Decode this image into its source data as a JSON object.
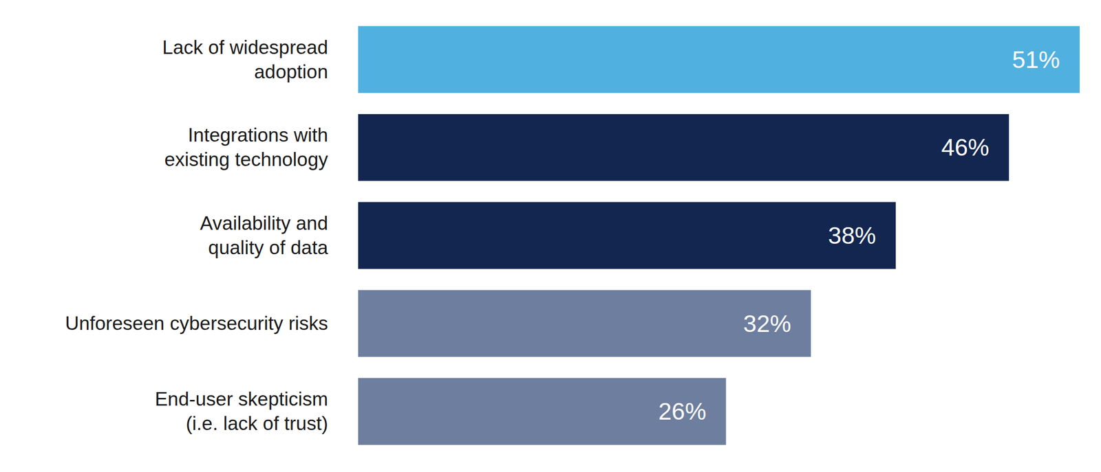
{
  "chart_data": {
    "type": "bar",
    "orientation": "horizontal",
    "categories": [
      "Lack of widespread\nadoption",
      "Integrations with\nexisting technology",
      "Availability and\nquality of data",
      "Unforeseen cybersecurity risks",
      "End-user skepticism\n(i.e. lack of trust)"
    ],
    "values": [
      51,
      46,
      38,
      32,
      26
    ],
    "value_labels": [
      "51%",
      "46%",
      "38%",
      "32%",
      "26%"
    ],
    "colors": [
      "#50b0e0",
      "#12264f",
      "#12264f",
      "#6e7e9e",
      "#6e7e9e"
    ],
    "data_labels": true,
    "tick_labels": "y",
    "grid": false
  }
}
